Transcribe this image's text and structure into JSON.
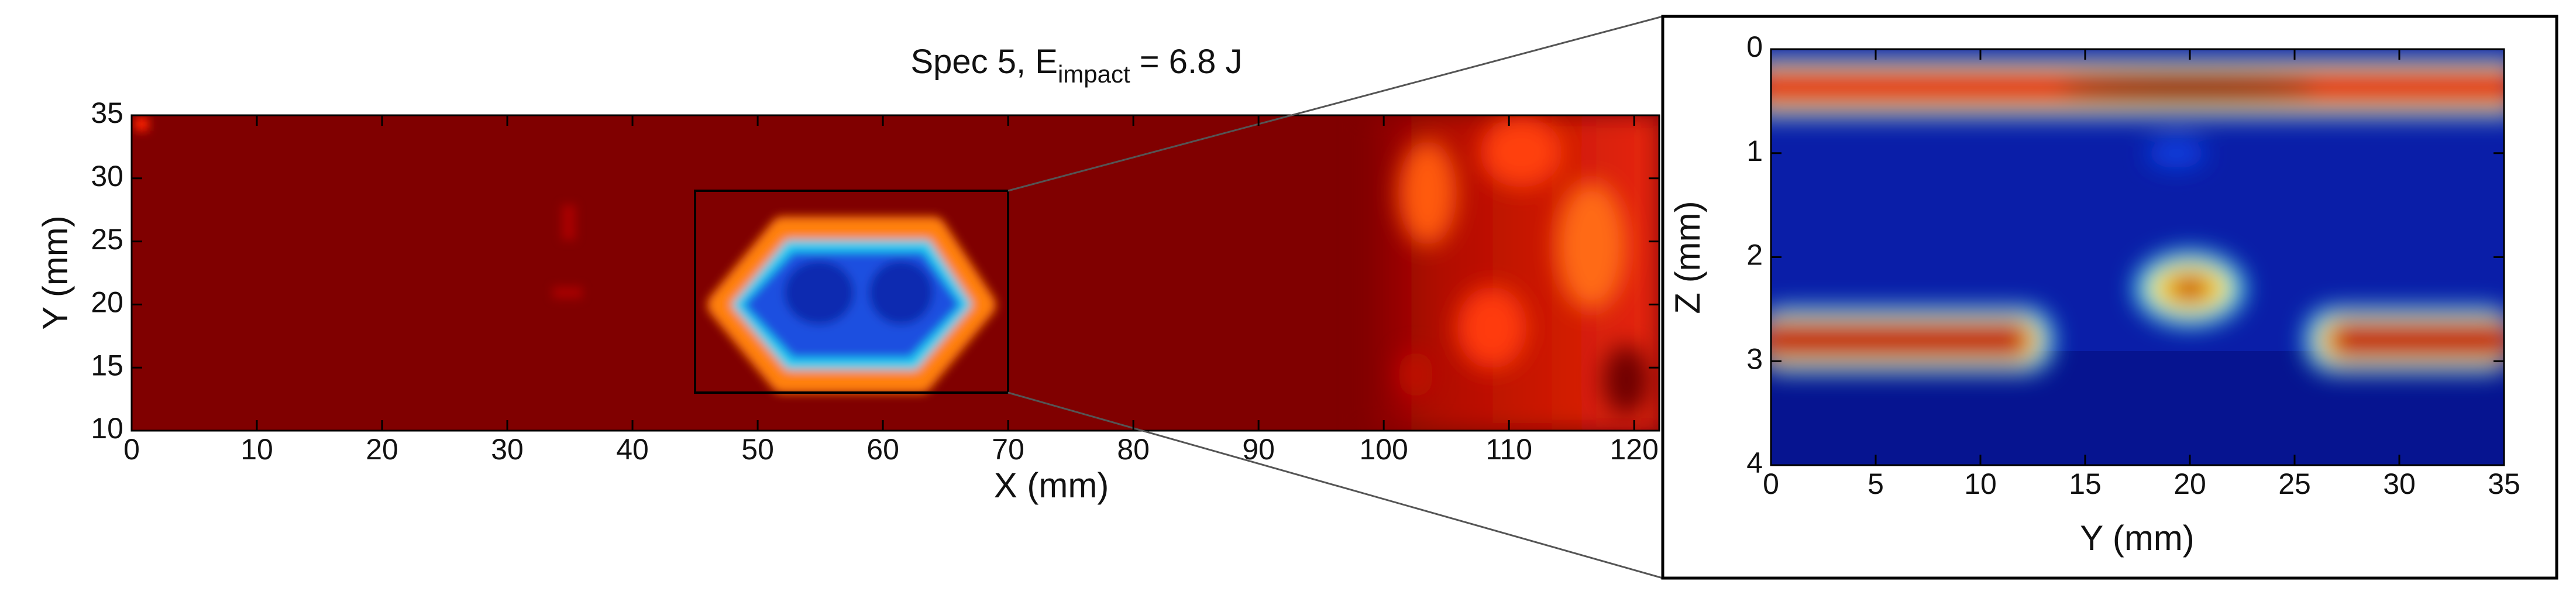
{
  "chart_data": [
    {
      "type": "heatmap",
      "title": "Spec 5, E",
      "title_subscript": "impact",
      "title_end": " = 6.8 J",
      "x_label": "X (mm)",
      "y_label": "Y (mm)",
      "xlim": [
        0,
        122
      ],
      "ylim": [
        10,
        35
      ],
      "xticks": [
        0,
        10,
        20,
        30,
        40,
        50,
        60,
        70,
        80,
        90,
        100,
        110,
        120
      ],
      "yticks": [
        10,
        15,
        20,
        25,
        30,
        35
      ]
    },
    {
      "type": "heatmap",
      "x_label": "Y (mm)",
      "y_label": "Z (mm)",
      "xlim": [
        0,
        35
      ],
      "ylim": [
        4,
        0
      ],
      "xticks": [
        0,
        5,
        10,
        15,
        20,
        25,
        30,
        35
      ],
      "yticks": [
        0,
        1,
        2,
        3,
        4
      ]
    }
  ]
}
